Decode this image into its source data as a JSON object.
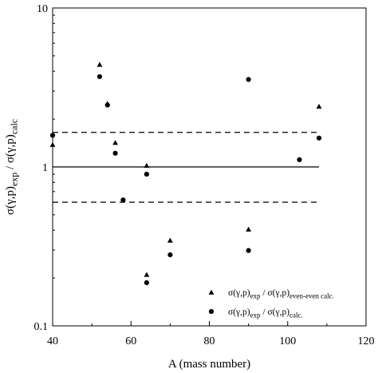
{
  "chart_data": {
    "type": "scatter",
    "xlabel": "A (mass number)",
    "ylabel": {
      "parts": [
        {
          "text": "σ(γ,p)",
          "sub": false
        },
        {
          "text": "exp",
          "sub": true
        },
        {
          "text": " / σ(γ,p)",
          "sub": false
        },
        {
          "text": "calc",
          "sub": true
        }
      ]
    },
    "xlim": [
      40,
      120
    ],
    "ylim": [
      0.1,
      10
    ],
    "yscale": "log",
    "x_ticks": [
      {
        "value": 40,
        "label": "40"
      },
      {
        "value": 60,
        "label": "60"
      },
      {
        "value": 80,
        "label": "80"
      },
      {
        "value": 100,
        "label": "100"
      },
      {
        "value": 120,
        "label": "120"
      }
    ],
    "y_ticks": [
      {
        "value": 0.1,
        "label": "0.1"
      },
      {
        "value": 1,
        "label": "1"
      },
      {
        "value": 10,
        "label": "10"
      }
    ],
    "grid": false,
    "legend_position": "bottom-right",
    "series": [
      {
        "name_parts": [
          {
            "text": "σ(γ,p)",
            "sub": false
          },
          {
            "text": "exp",
            "sub": true
          },
          {
            "text": " / σ(γ,p)",
            "sub": false
          },
          {
            "text": "even-even calc.",
            "sub": true
          }
        ],
        "marker": "triangle",
        "points": [
          {
            "x": 40,
            "y": 1.38
          },
          {
            "x": 52,
            "y": 4.4
          },
          {
            "x": 54,
            "y": 2.5
          },
          {
            "x": 56,
            "y": 1.42
          },
          {
            "x": 64,
            "y": 1.02
          },
          {
            "x": 64,
            "y": 0.21
          },
          {
            "x": 70,
            "y": 0.345
          },
          {
            "x": 90,
            "y": 0.405
          },
          {
            "x": 108,
            "y": 2.4
          }
        ]
      },
      {
        "name_parts": [
          {
            "text": "σ(γ,p)",
            "sub": false
          },
          {
            "text": "exp",
            "sub": true
          },
          {
            "text": " / σ(γ,p)",
            "sub": false
          },
          {
            "text": "calc.",
            "sub": true
          }
        ],
        "marker": "circle",
        "points": [
          {
            "x": 40,
            "y": 1.58
          },
          {
            "x": 52,
            "y": 3.7
          },
          {
            "x": 54,
            "y": 2.45
          },
          {
            "x": 56,
            "y": 1.22
          },
          {
            "x": 58,
            "y": 0.62
          },
          {
            "x": 64,
            "y": 0.9
          },
          {
            "x": 64,
            "y": 0.187
          },
          {
            "x": 70,
            "y": 0.28
          },
          {
            "x": 90,
            "y": 3.55
          },
          {
            "x": 90,
            "y": 0.298
          },
          {
            "x": 103,
            "y": 1.11
          },
          {
            "x": 108,
            "y": 1.52
          }
        ]
      }
    ],
    "reference_lines": [
      {
        "y": 1,
        "x_range": [
          40,
          108
        ],
        "style": "solid"
      },
      {
        "y": 1.65,
        "x_range": [
          40,
          108
        ],
        "style": "dashed"
      },
      {
        "y": 0.6,
        "x_range": [
          40,
          108
        ],
        "style": "dashed"
      }
    ]
  }
}
